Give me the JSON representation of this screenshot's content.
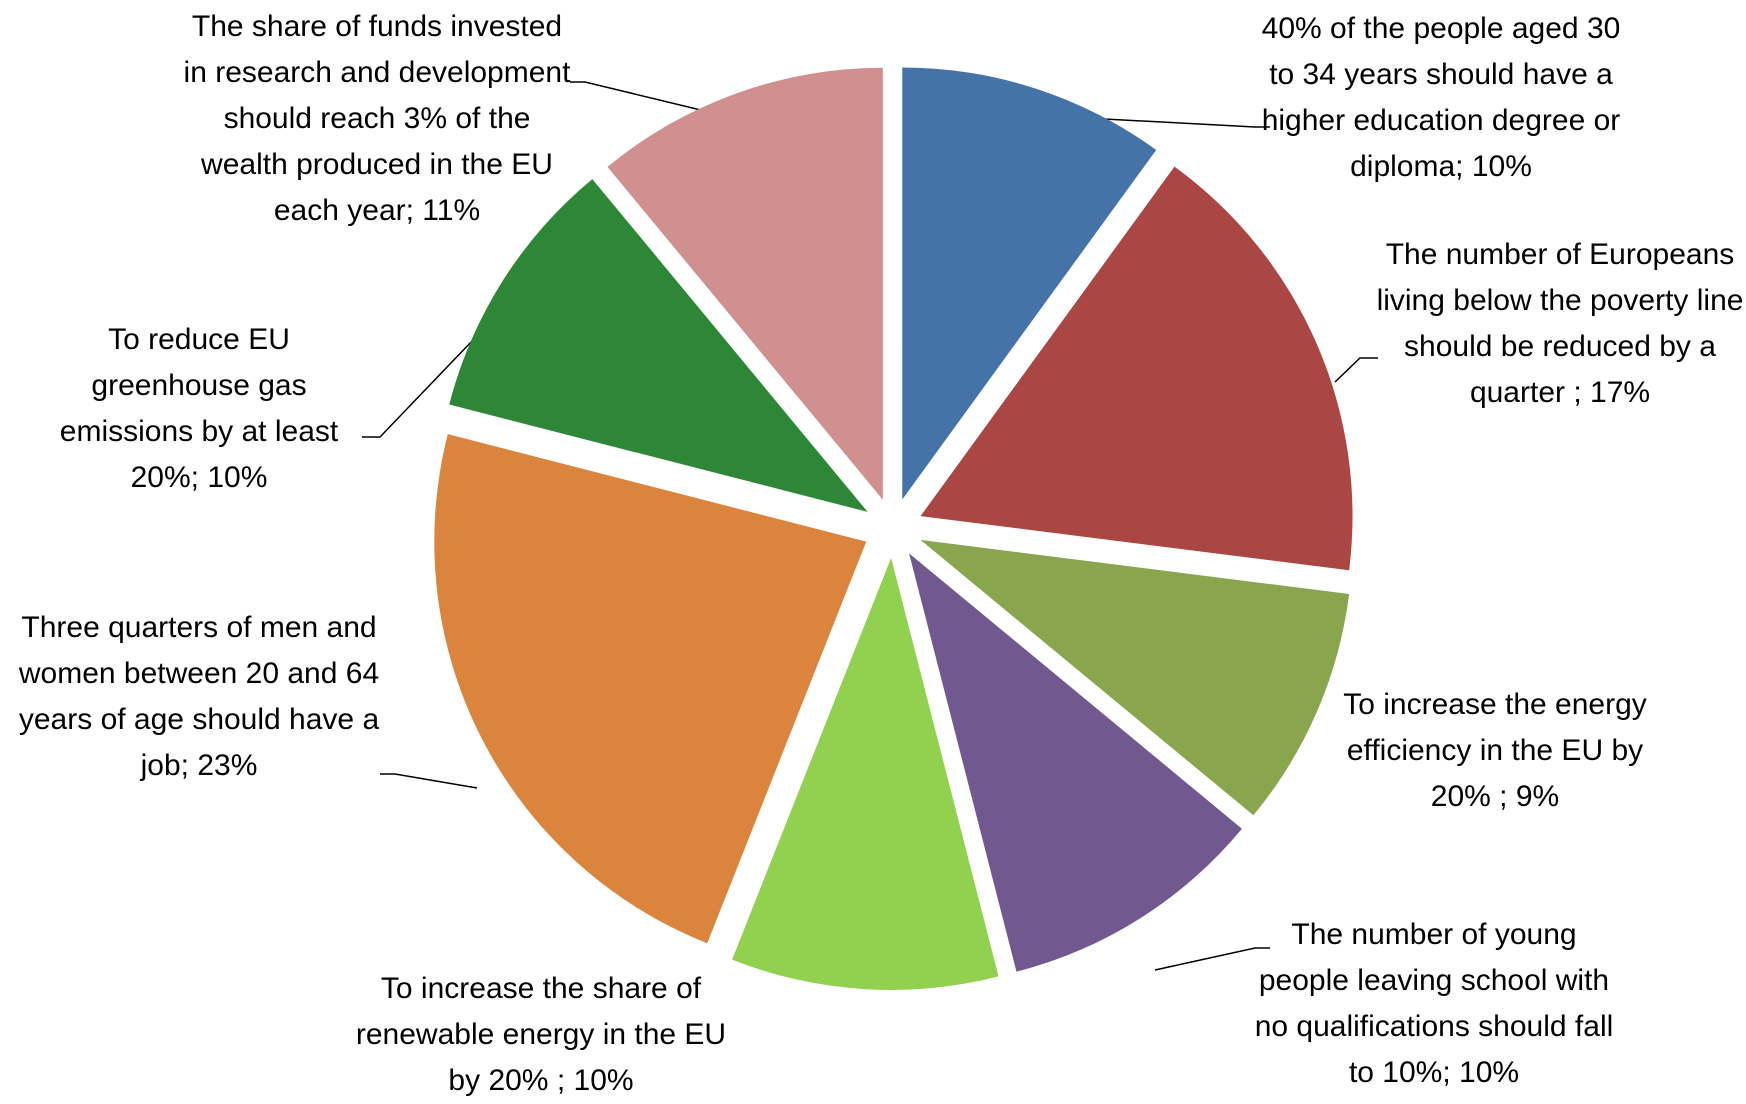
{
  "chart_data": {
    "type": "pie",
    "categories": [
      "40% of the people aged 30 to 34 years should have a higher education degree or diploma",
      "The number of Europeans living below the poverty line should be reduced by a quarter",
      "To increase the energy efficiency in the EU by 20%",
      "The number of young people leaving school with no qualifications should fall to 10%",
      "To increase the share of renewable energy in the EU by 20%",
      "Three quarters of men and women between 20 and 64 years of age should have a job",
      "To reduce EU greenhouse gas emissions by at least 20%",
      "The share of funds invested in research and development should reach 3% of the wealth produced in the EU each year"
    ],
    "values": [
      10,
      17,
      9,
      10,
      10,
      23,
      10,
      11
    ],
    "value_labels": [
      "; 10%",
      " ; 17%",
      " ; 9%",
      "; 10%",
      " ; 10%",
      "; 23%",
      "; 10%",
      "; 11%"
    ],
    "colors": [
      "#4572a7",
      "#aa4643",
      "#89a54e",
      "#71588f",
      "#92d050",
      "#db843d",
      "#2e8737",
      "#d09090"
    ]
  }
}
